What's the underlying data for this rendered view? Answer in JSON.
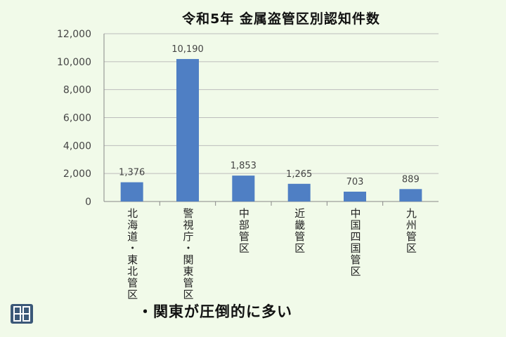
{
  "title": "令和5年 金属盗管区別認知件数",
  "note": "・関東が圧倒的に多い",
  "logo": {
    "caption": ""
  },
  "colors": {
    "bar": "#4f7fc4",
    "grid": "#bcbcbc",
    "axis": "#888888",
    "text": "#444444"
  },
  "chart_data": {
    "type": "bar",
    "title": "令和5年 金属盗管区別認知件数",
    "xlabel": "",
    "ylabel": "",
    "ylim": [
      0,
      12000
    ],
    "yticks": [
      0,
      2000,
      4000,
      6000,
      8000,
      10000,
      12000
    ],
    "ytick_labels": [
      "0",
      "2,000",
      "4,000",
      "6,000",
      "8,000",
      "10,000",
      "12,000"
    ],
    "grid": true,
    "categories": [
      "北海道・東北管区",
      "警視庁・関東管区",
      "中部管区",
      "近畿管区",
      "中国四国管区",
      "九州管区"
    ],
    "values": [
      1376,
      10190,
      1853,
      1265,
      703,
      889
    ],
    "value_labels": [
      "1,376",
      "10,190",
      "1,853",
      "1,265",
      "703",
      "889"
    ]
  }
}
